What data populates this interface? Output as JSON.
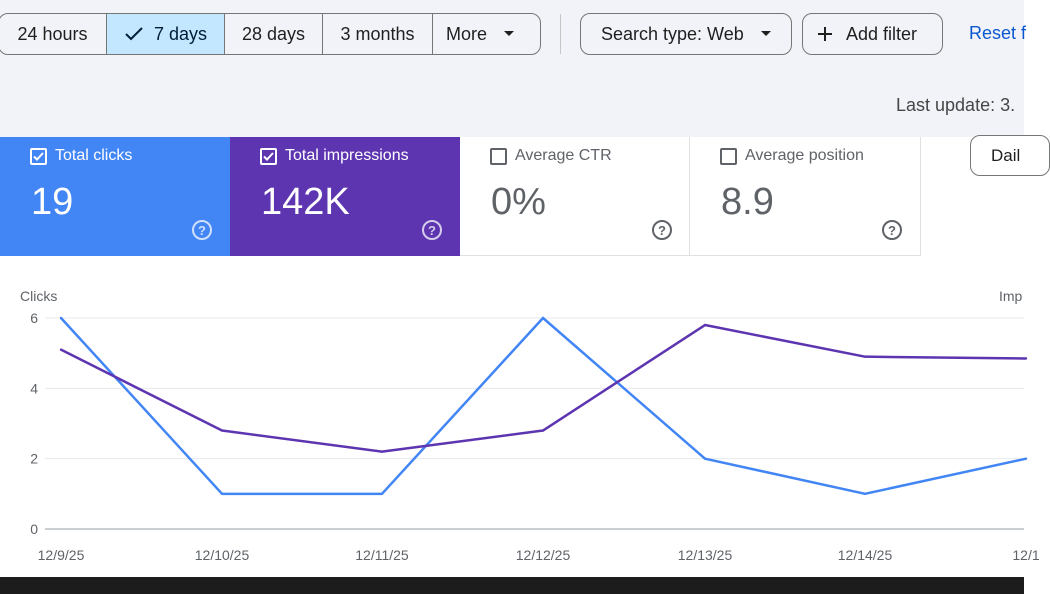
{
  "range": {
    "options": [
      {
        "label": "24 hours",
        "active": false
      },
      {
        "label": "7 days",
        "active": true
      },
      {
        "label": "28 days",
        "active": false
      },
      {
        "label": "3 months",
        "active": false
      },
      {
        "label": "More",
        "active": false
      }
    ]
  },
  "filters": {
    "search_type": "Search type: Web",
    "add_filter": "Add filter",
    "reset": "Reset f"
  },
  "last_update": "Last update: 3.",
  "metrics": [
    {
      "label": "Total clicks",
      "value": "19",
      "checked": true
    },
    {
      "label": "Total impressions",
      "value": "142K",
      "checked": true
    },
    {
      "label": "Average CTR",
      "value": "0%",
      "checked": false
    },
    {
      "label": "Average position",
      "value": "8.9",
      "checked": false
    }
  ],
  "daily_button": "Dail",
  "colors": {
    "clicks": "#4285f4",
    "impressions": "#5e35b1",
    "active_tab": "#c2e7ff",
    "link": "#0b57d0"
  },
  "chart_data": {
    "type": "line",
    "ylabel_left": "Clicks",
    "ylabel_right": "Imp",
    "yticks": [
      "0",
      "2",
      "4",
      "6"
    ],
    "ylim": [
      0,
      6
    ],
    "grid": true,
    "x": [
      "12/9/25",
      "12/10/25",
      "12/11/25",
      "12/12/25",
      "12/13/25",
      "12/14/25",
      "12/1"
    ],
    "series": [
      {
        "key": "clicks",
        "values": [
          6,
          1,
          1,
          6,
          2,
          1,
          2
        ]
      },
      {
        "key": "impressions",
        "values": [
          5.1,
          2.8,
          2.2,
          2.8,
          5.8,
          4.9,
          4.85
        ]
      }
    ]
  }
}
